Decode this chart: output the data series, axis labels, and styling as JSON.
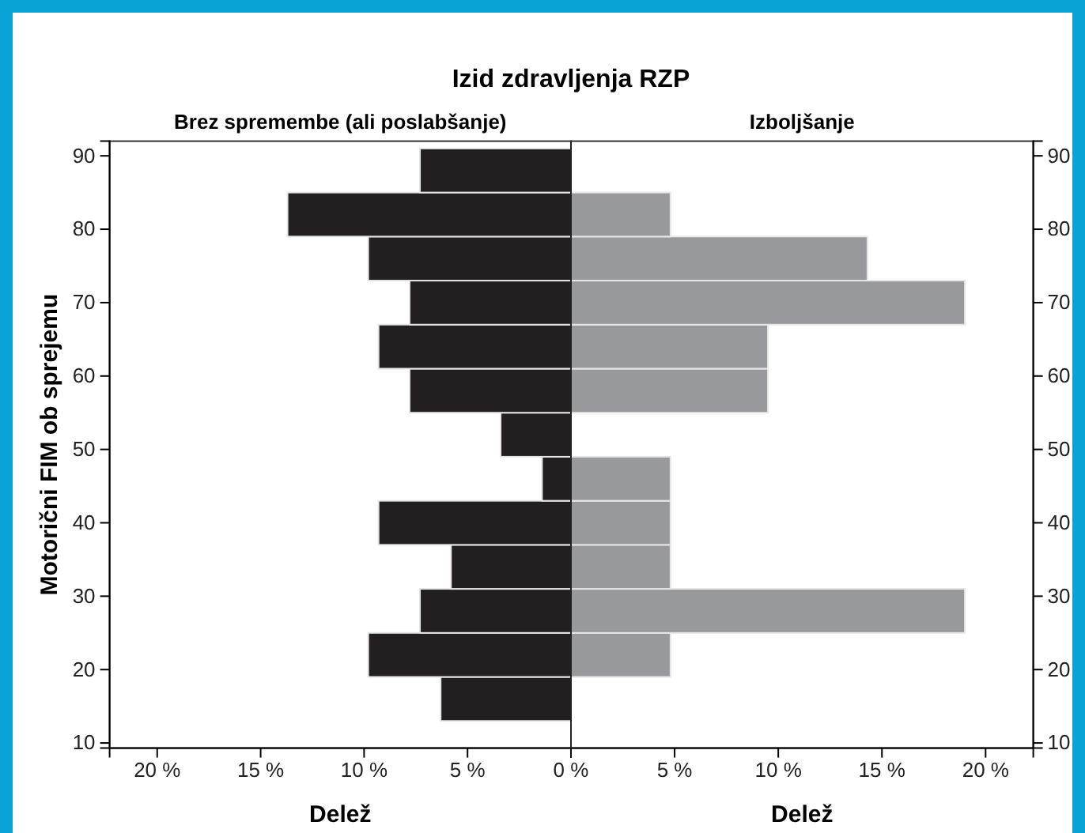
{
  "chart_data": [
    {
      "type": "histogram",
      "orientation": "horizontal",
      "title": "Izid zdravljenja RZP",
      "subtitle": "Brez spremembe (ali poslabšanje)",
      "xlabel": "Delež",
      "ylabel": "Motorični FIM ob sprejemu",
      "color": "#231f20",
      "bins": [
        13,
        19,
        25,
        31,
        37,
        43,
        49,
        55,
        61,
        67,
        73,
        79,
        85,
        91
      ],
      "values": [
        6.3,
        9.8,
        7.3,
        5.8,
        9.3,
        1.4,
        3.4,
        7.8,
        9.3,
        7.8,
        9.8,
        13.7,
        7.3
      ],
      "xlim": [
        22.3,
        0
      ],
      "xticks": [
        {
          "value": 20,
          "label": "20 %"
        },
        {
          "value": 15,
          "label": "15 %"
        },
        {
          "value": 10,
          "label": "10 %"
        },
        {
          "value": 5,
          "label": "5 %"
        },
        {
          "value": 0,
          "label": "0 %"
        }
      ],
      "ylim": [
        9.3,
        92
      ],
      "yticks": [
        10,
        20,
        30,
        40,
        50,
        60,
        70,
        80,
        90
      ]
    },
    {
      "type": "histogram",
      "orientation": "horizontal",
      "subtitle": "Izboljšanje",
      "xlabel": "Delež",
      "color": "#98999c",
      "bins": [
        13,
        19,
        25,
        31,
        37,
        43,
        49,
        55,
        61,
        67,
        73,
        79,
        85,
        91
      ],
      "values": [
        0,
        4.8,
        19.0,
        4.8,
        4.8,
        4.8,
        0,
        9.5,
        9.5,
        19.0,
        14.3,
        4.8,
        0
      ],
      "xlim": [
        0,
        22.3
      ],
      "xticks": [
        {
          "value": 0,
          "label": null
        },
        {
          "value": 5,
          "label": "5 %"
        },
        {
          "value": 10,
          "label": "10 %"
        },
        {
          "value": 15,
          "label": "15 %"
        },
        {
          "value": 20,
          "label": "20 %"
        }
      ],
      "ylim": [
        9.3,
        92
      ],
      "yticks": [
        10,
        20,
        30,
        40,
        50,
        60,
        70,
        80,
        90
      ]
    }
  ]
}
